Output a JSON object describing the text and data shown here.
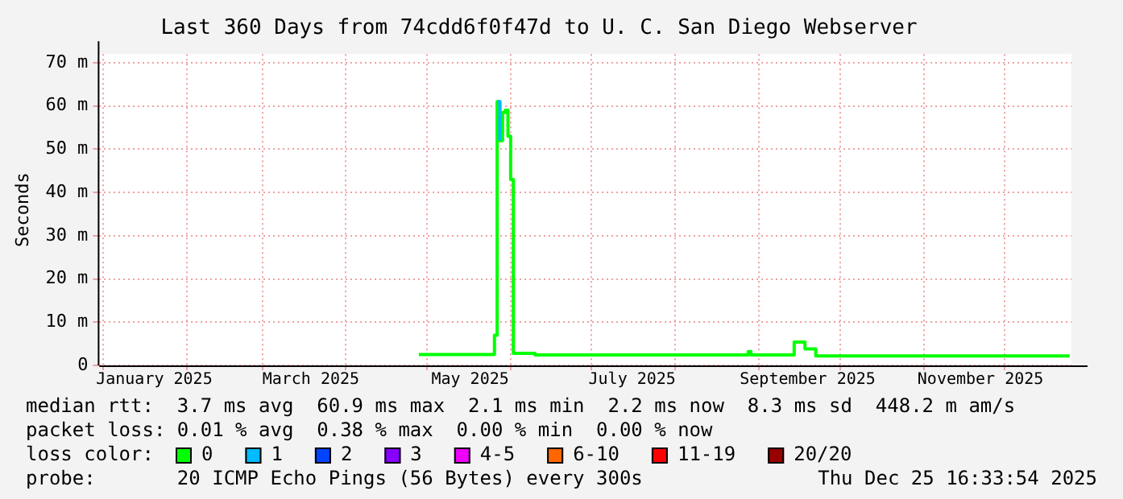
{
  "chart_data": {
    "type": "step",
    "title": "Last 360 Days from 74cdd6f0f47d to U. C. San Diego Webserver",
    "ylabel": "Seconds",
    "x": [
      "2025-04-28",
      "2025-05-26",
      "2025-05-27",
      "2025-05-28",
      "2025-05-29",
      "2025-05-30",
      "2025-05-31",
      "2025-06-01",
      "2025-06-02",
      "2025-06-10",
      "2025-08-28",
      "2025-08-29",
      "2025-09-14",
      "2025-09-18",
      "2025-09-22",
      "2025-12-25"
    ],
    "series": [
      {
        "name": "0",
        "color": "#00ff00",
        "values": [
          2.5,
          7,
          61,
          52,
          58.5,
          59,
          53,
          43,
          2.8,
          2.4,
          3.2,
          2.4,
          5.4,
          3.8,
          2.2,
          2.2
        ]
      },
      {
        "name": "1",
        "color": "#00bbff",
        "values": [
          null,
          null,
          61,
          52,
          null,
          null,
          null,
          null,
          null,
          null,
          null,
          null,
          null,
          null,
          null,
          null
        ]
      },
      {
        "name": "2",
        "color": "#0044ff",
        "values": [
          null,
          null,
          null,
          null,
          null,
          null,
          null,
          null,
          null,
          null,
          null,
          null,
          null,
          null,
          null,
          null
        ]
      },
      {
        "name": "3",
        "color": "#8800ff",
        "values": [
          null,
          null,
          null,
          null,
          null,
          null,
          null,
          null,
          null,
          null,
          null,
          null,
          null,
          null,
          null,
          null
        ]
      },
      {
        "name": "4-5",
        "color": "#ee00ff",
        "values": [
          null,
          null,
          null,
          null,
          null,
          null,
          null,
          null,
          null,
          null,
          null,
          null,
          null,
          null,
          null,
          null
        ]
      },
      {
        "name": "6-10",
        "color": "#ff6600",
        "values": [
          null,
          null,
          null,
          null,
          null,
          null,
          null,
          null,
          null,
          null,
          null,
          null,
          null,
          null,
          null,
          null
        ]
      },
      {
        "name": "11-19",
        "color": "#ff0000",
        "values": [
          null,
          null,
          null,
          null,
          null,
          null,
          null,
          null,
          null,
          null,
          null,
          null,
          null,
          null,
          null,
          null
        ]
      },
      {
        "name": "20/20",
        "color": "#990000",
        "values": [
          null,
          null,
          null,
          null,
          null,
          null,
          null,
          null,
          null,
          null,
          null,
          null,
          null,
          null,
          null,
          null
        ]
      }
    ],
    "legend_title": "loss color:",
    "legend": "bottom left",
    "xlim": [
      "2024-12-30T16:33",
      "2025-12-25T16:33"
    ],
    "xticks": [
      {
        "value": "2025-01-01",
        "label": null
      },
      {
        "value": "2025-01-20",
        "label": "January 2025"
      },
      {
        "value": "2025-02-01",
        "label": null
      },
      {
        "value": "2025-03-01",
        "label": null
      },
      {
        "value": "2025-03-19",
        "label": "March 2025"
      },
      {
        "value": "2025-04-01",
        "label": null
      },
      {
        "value": "2025-05-01",
        "label": null
      },
      {
        "value": "2025-05-17",
        "label": "May 2025"
      },
      {
        "value": "2025-06-01",
        "label": null
      },
      {
        "value": "2025-07-01",
        "label": null
      },
      {
        "value": "2025-07-16",
        "label": "July 2025"
      },
      {
        "value": "2025-08-01",
        "label": null
      },
      {
        "value": "2025-09-01",
        "label": null
      },
      {
        "value": "2025-09-19",
        "label": "September 2025"
      },
      {
        "value": "2025-10-01",
        "label": null
      },
      {
        "value": "2025-11-01",
        "label": null
      },
      {
        "value": "2025-11-22",
        "label": "November 2025"
      },
      {
        "value": "2025-12-01",
        "label": null
      }
    ],
    "ylim": [
      0,
      72
    ],
    "yticks": [
      0,
      {
        "value": 10,
        "label": "10 m"
      },
      {
        "value": 20,
        "label": "20 m"
      },
      {
        "value": 30,
        "label": "30 m"
      },
      {
        "value": 40,
        "label": "40 m"
      },
      {
        "value": 50,
        "label": "50 m"
      },
      {
        "value": 60,
        "label": "60 m"
      },
      {
        "value": 70,
        "label": "70 m"
      }
    ],
    "grid": true,
    "marker": "none",
    "line_style": "solid",
    "annotations": [
      "median rtt:  3.7 ms avg  60.9 ms max  2.1 ms min  2.2 ms now  8.3 ms sd  448.2 m am/s",
      "packet loss: 0.01 % avg  0.38 % max  0.00 % min  0.00 % now",
      "probe:       20 ICMP Echo Pings (56 Bytes) every 300s",
      "Thu Dec 25 16:33:54 2025"
    ]
  }
}
